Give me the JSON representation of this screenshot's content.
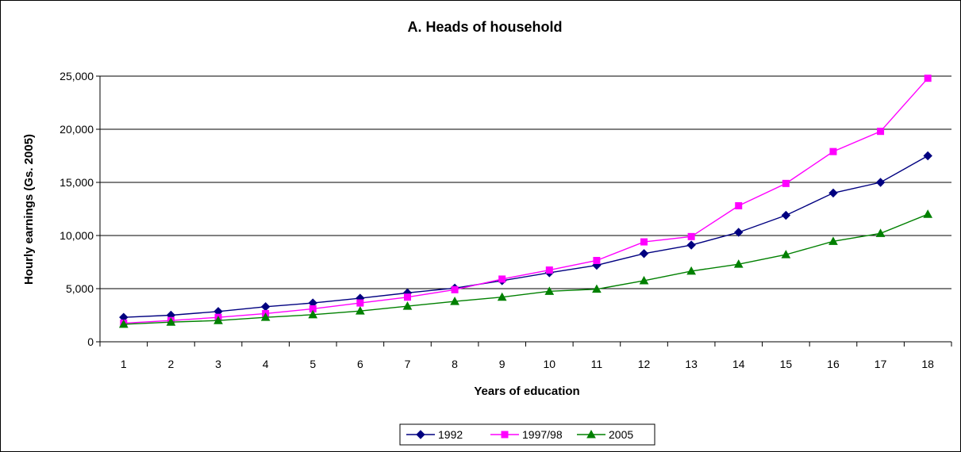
{
  "chart_data": {
    "type": "line",
    "title": "A. Heads of household",
    "xlabel": "Years of education",
    "ylabel": "Hourly earnings (Gs. 2005)",
    "categories": [
      "1",
      "2",
      "3",
      "4",
      "5",
      "6",
      "7",
      "8",
      "9",
      "10",
      "11",
      "12",
      "13",
      "14",
      "15",
      "16",
      "17",
      "18"
    ],
    "ylim": [
      0,
      25000
    ],
    "yticks": [
      0,
      5000,
      10000,
      15000,
      20000,
      25000
    ],
    "ytick_labels": [
      "0",
      "5,000",
      "10,000",
      "15,000",
      "20,000",
      "25,000"
    ],
    "grid": "horizontal",
    "legend_position": "bottom",
    "series": [
      {
        "name": "1992",
        "color": "#000080",
        "marker": "diamond",
        "values": [
          2300,
          2500,
          2850,
          3300,
          3650,
          4100,
          4600,
          5050,
          5750,
          6500,
          7200,
          8300,
          9100,
          10300,
          11900,
          14000,
          15000,
          17500
        ]
      },
      {
        "name": "1997/98",
        "color": "#FF00FF",
        "marker": "square",
        "values": [
          1750,
          2000,
          2300,
          2650,
          3100,
          3650,
          4200,
          4900,
          5900,
          6750,
          7650,
          9400,
          9900,
          12800,
          14900,
          17900,
          19800,
          24800
        ]
      },
      {
        "name": "2005",
        "color": "#008000",
        "marker": "triangle",
        "values": [
          1650,
          1850,
          2000,
          2300,
          2550,
          2900,
          3350,
          3800,
          4200,
          4750,
          4950,
          5750,
          6650,
          7300,
          8200,
          9450,
          10200,
          12000
        ]
      }
    ]
  }
}
